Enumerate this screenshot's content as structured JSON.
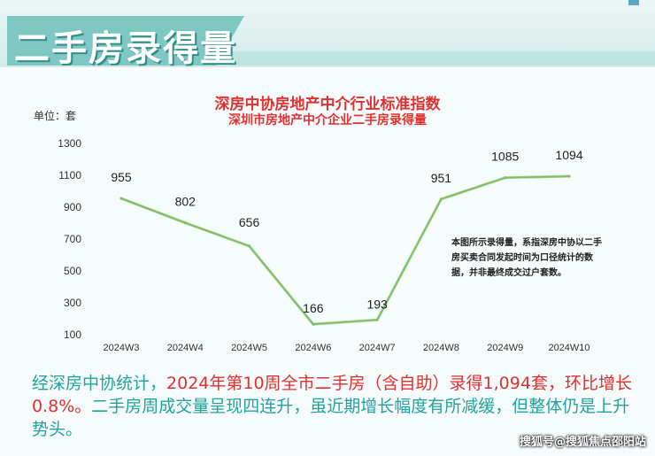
{
  "header": {
    "title": "二手房录得量"
  },
  "chart_header": {
    "title": "深房中协房地产中介行业标准指数",
    "subtitle": "深圳市房地产中介企业二手房录得量"
  },
  "unit_label": "单位：套",
  "note": "本图所示录得量，系指深房中协以二手房买卖合同发起时间为口径统计的数据，并非最终成交过户套数。",
  "summary": {
    "part1": "经深房中协统计，",
    "part2_red": "2024年第10周全市二手房（含自助）录得1,094套，环比增长0.8%。",
    "part3": "二手房周成交量呈现四连升，虽近期增长幅度有所减缓，但整体仍是上升势头。"
  },
  "watermark": "搜狐号@搜狐焦点邵阳站",
  "colors": {
    "line": "#7cbf5f",
    "title_red": "#e03030",
    "summary_teal": "#22a39c",
    "banner_teal": "#7fc7c2"
  },
  "chart_data": {
    "type": "line",
    "categories": [
      "2024W3",
      "2024W4",
      "2024W5",
      "2024W6",
      "2024W7",
      "2024W8",
      "2024W9",
      "2024W10"
    ],
    "values": [
      955,
      802,
      656,
      166,
      193,
      951,
      1085,
      1094
    ],
    "data_labels": [
      "955",
      "802",
      "656",
      "166",
      "193",
      "951",
      "1085",
      "1094"
    ],
    "yticks": [
      100,
      300,
      500,
      700,
      900,
      1100,
      1300
    ],
    "ylim": [
      100,
      1300
    ],
    "ylabel": "单位：套",
    "grid": false,
    "legend": "none"
  }
}
